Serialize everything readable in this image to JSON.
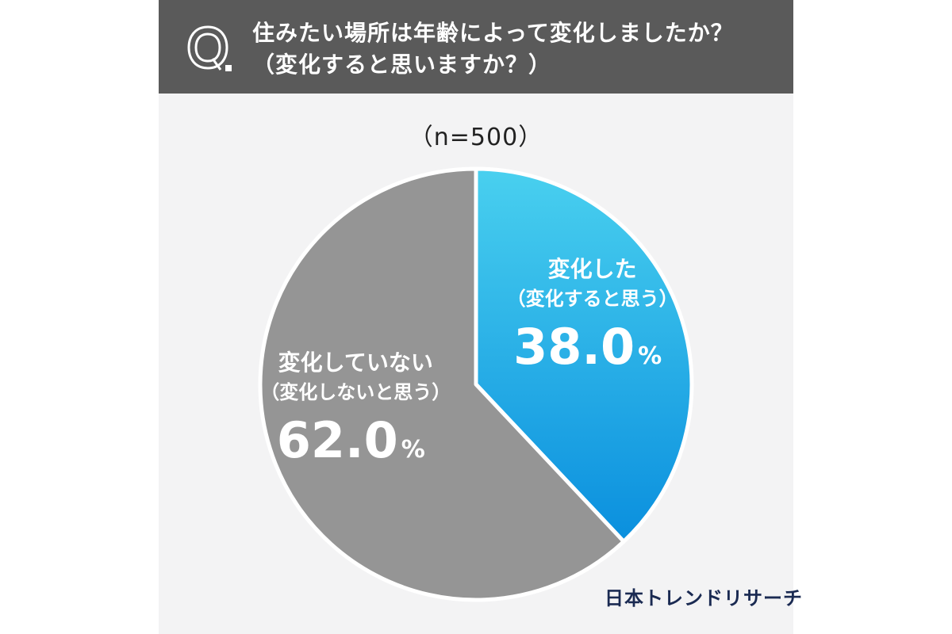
{
  "header": {
    "q_mark": "Q.",
    "question_line1": "住みたい場所は年齢によって変化しましたか？",
    "question_line2": "（変化すると思いますか？）"
  },
  "sample_label": "（n=500）",
  "brand": "日本トレンドリサーチ",
  "colors": {
    "header_bg": "#5a5a5a",
    "changed_top": "#49d0ef",
    "changed_bottom": "#0a8fde",
    "not_changed": "#959595"
  },
  "chart_data": {
    "type": "pie",
    "unit": "%",
    "slices": [
      {
        "label_line1": "変化した",
        "label_line2": "（変化すると思う）",
        "value": 38.0,
        "value_text": "38.0"
      },
      {
        "label_line1": "変化していない",
        "label_line2": "（変化しないと思う）",
        "value": 62.0,
        "value_text": "62.0"
      }
    ]
  }
}
